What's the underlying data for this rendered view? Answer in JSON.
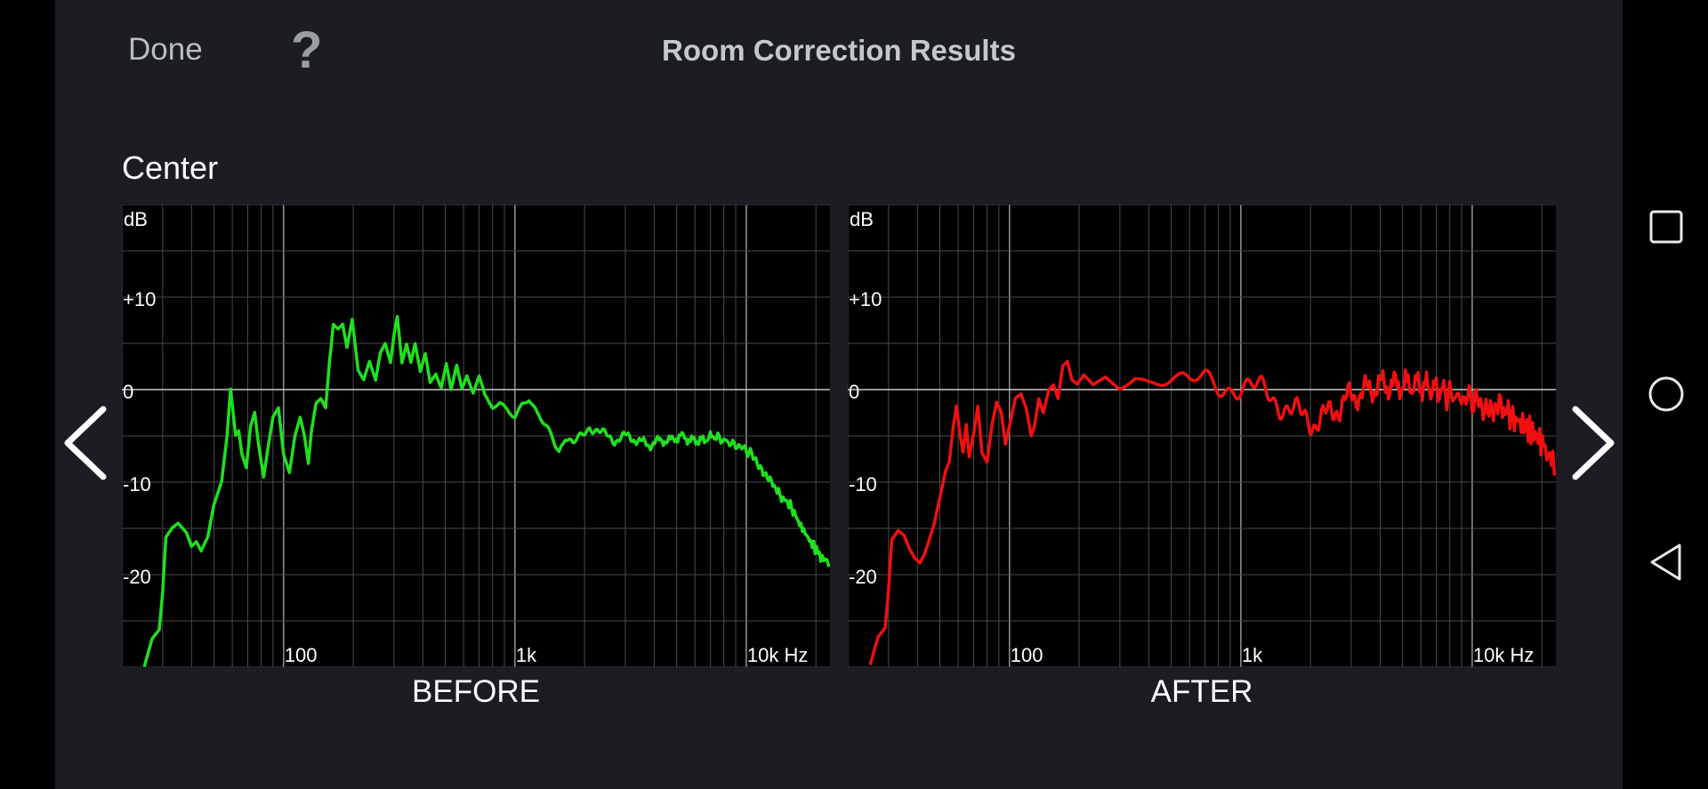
{
  "header": {
    "done_label": "Done",
    "help_label": "?",
    "title": "Room Correction Results"
  },
  "channel": "Center",
  "icons": {
    "prev": "chevron-left-icon",
    "next": "chevron-right-icon",
    "recent": "square-icon",
    "home": "circle-icon",
    "back": "triangle-back-icon"
  },
  "chart_data": [
    {
      "type": "line",
      "caption": "BEFORE",
      "color": "#20e020",
      "y_unit_label": "dB",
      "x_scale": "log",
      "xlim": [
        20,
        23000
      ],
      "ylim": [
        -30,
        20
      ],
      "y_ticks": [
        {
          "value": 10,
          "label": "+10"
        },
        {
          "value": 0,
          "label": "0"
        },
        {
          "value": -10,
          "label": "-10"
        },
        {
          "value": -20,
          "label": "-20"
        }
      ],
      "x_ticks": [
        {
          "value": 100,
          "label": "100"
        },
        {
          "value": 1000,
          "label": "1k"
        },
        {
          "value": 10000,
          "label": "10k Hz"
        }
      ],
      "grid": true,
      "ripple": 0.6,
      "points": [
        [
          25,
          -30
        ],
        [
          27,
          -27
        ],
        [
          29,
          -26
        ],
        [
          30,
          -22
        ],
        [
          31,
          -16
        ],
        [
          33,
          -15
        ],
        [
          35,
          -14.5
        ],
        [
          38,
          -15.5
        ],
        [
          40,
          -17
        ],
        [
          42,
          -16.5
        ],
        [
          44,
          -17.5
        ],
        [
          47,
          -16
        ],
        [
          50,
          -12.5
        ],
        [
          54,
          -10
        ],
        [
          57,
          -5
        ],
        [
          59,
          0
        ],
        [
          62,
          -5
        ],
        [
          64,
          -4.5
        ],
        [
          66,
          -7
        ],
        [
          69,
          -8.5
        ],
        [
          72,
          -4
        ],
        [
          75,
          -2.5
        ],
        [
          78,
          -6
        ],
        [
          82,
          -9.5
        ],
        [
          86,
          -6
        ],
        [
          90,
          -3
        ],
        [
          95,
          -2
        ],
        [
          100,
          -7
        ],
        [
          106,
          -9
        ],
        [
          112,
          -5
        ],
        [
          118,
          -3
        ],
        [
          123,
          -5
        ],
        [
          128,
          -8
        ],
        [
          132,
          -4.5
        ],
        [
          138,
          -1.5
        ],
        [
          145,
          -1
        ],
        [
          152,
          -2
        ],
        [
          158,
          3
        ],
        [
          164,
          7
        ],
        [
          172,
          6.5
        ],
        [
          180,
          7
        ],
        [
          188,
          4.5
        ],
        [
          198,
          7.5
        ],
        [
          210,
          2
        ],
        [
          222,
          1
        ],
        [
          235,
          3
        ],
        [
          250,
          1
        ],
        [
          262,
          4
        ],
        [
          275,
          5
        ],
        [
          290,
          3
        ],
        [
          300,
          6
        ],
        [
          310,
          8
        ],
        [
          325,
          3
        ],
        [
          340,
          5
        ],
        [
          355,
          3
        ],
        [
          370,
          5
        ],
        [
          390,
          2
        ],
        [
          410,
          4
        ],
        [
          430,
          1
        ],
        [
          455,
          2
        ],
        [
          480,
          0.5
        ],
        [
          505,
          3
        ],
        [
          530,
          0
        ],
        [
          560,
          2.5
        ],
        [
          590,
          0
        ],
        [
          620,
          1.5
        ],
        [
          660,
          -0.5
        ],
        [
          700,
          1
        ],
        [
          740,
          -1
        ],
        [
          800,
          -2
        ],
        [
          860,
          -1.5
        ],
        [
          930,
          -2
        ],
        [
          1000,
          -2.5
        ],
        [
          1070,
          -1.5
        ],
        [
          1150,
          -1
        ],
        [
          1250,
          -3
        ],
        [
          1350,
          -4
        ],
        [
          1450,
          -5
        ],
        [
          1550,
          -6.5
        ],
        [
          1650,
          -5
        ],
        [
          1780,
          -6
        ],
        [
          1950,
          -5
        ],
        [
          2100,
          -4
        ],
        [
          2300,
          -4.5
        ],
        [
          2500,
          -5
        ],
        [
          2700,
          -5.5
        ],
        [
          3000,
          -5
        ],
        [
          3400,
          -5.5
        ],
        [
          3800,
          -6
        ],
        [
          4200,
          -5.5
        ],
        [
          4700,
          -5.5
        ],
        [
          5200,
          -5
        ],
        [
          5800,
          -5.5
        ],
        [
          6500,
          -5.5
        ],
        [
          7200,
          -5
        ],
        [
          8000,
          -5.5
        ],
        [
          9000,
          -6
        ],
        [
          10000,
          -6.5
        ],
        [
          11000,
          -7.5
        ],
        [
          12000,
          -9
        ],
        [
          13000,
          -10
        ],
        [
          14000,
          -11.5
        ],
        [
          15500,
          -12.5
        ],
        [
          17000,
          -14.5
        ],
        [
          19000,
          -16.5
        ],
        [
          21000,
          -18
        ],
        [
          23000,
          -19
        ]
      ]
    },
    {
      "type": "line",
      "caption": "AFTER",
      "color": "#f01010",
      "y_unit_label": "dB",
      "x_scale": "log",
      "xlim": [
        20,
        23000
      ],
      "ylim": [
        -30,
        20
      ],
      "y_ticks": [
        {
          "value": 10,
          "label": "+10"
        },
        {
          "value": 0,
          "label": "0"
        },
        {
          "value": -10,
          "label": "-10"
        },
        {
          "value": -20,
          "label": "-20"
        }
      ],
      "x_ticks": [
        {
          "value": 100,
          "label": "100"
        },
        {
          "value": 1000,
          "label": "1k"
        },
        {
          "value": 10000,
          "label": "10k Hz"
        }
      ],
      "grid": true,
      "ripple": 1.8,
      "points": [
        [
          25,
          -30
        ],
        [
          27,
          -27
        ],
        [
          29,
          -26
        ],
        [
          30,
          -22
        ],
        [
          31,
          -16.5
        ],
        [
          33,
          -15.5
        ],
        [
          35,
          -16
        ],
        [
          37,
          -17.5
        ],
        [
          39,
          -18.5
        ],
        [
          41,
          -19
        ],
        [
          43,
          -18
        ],
        [
          45,
          -16.5
        ],
        [
          47,
          -15
        ],
        [
          50,
          -12
        ],
        [
          53,
          -9
        ],
        [
          55,
          -8
        ],
        [
          57,
          -4.5
        ],
        [
          59,
          -2
        ],
        [
          61,
          -5
        ],
        [
          63,
          -7
        ],
        [
          65,
          -4
        ],
        [
          67,
          -7.5
        ],
        [
          70,
          -5
        ],
        [
          73,
          -2
        ],
        [
          76,
          -7
        ],
        [
          80,
          -8
        ],
        [
          84,
          -4
        ],
        [
          88,
          -1.5
        ],
        [
          92,
          -2.5
        ],
        [
          96,
          -6
        ],
        [
          100,
          -4
        ],
        [
          106,
          -1
        ],
        [
          112,
          -0.5
        ],
        [
          118,
          -2
        ],
        [
          124,
          -5
        ],
        [
          128,
          -4
        ],
        [
          134,
          -1
        ],
        [
          140,
          -2.5
        ],
        [
          148,
          0
        ],
        [
          155,
          0.5
        ],
        [
          162,
          -1
        ],
        [
          170,
          2.5
        ],
        [
          178,
          3
        ],
        [
          186,
          1
        ],
        [
          196,
          0.5
        ],
        [
          210,
          1.5
        ],
        [
          230,
          0.5
        ],
        [
          260,
          1.5
        ],
        [
          300,
          0.5
        ],
        [
          350,
          1.5
        ],
        [
          400,
          1
        ],
        [
          500,
          1
        ],
        [
          600,
          0.5
        ],
        [
          700,
          1
        ],
        [
          800,
          0.5
        ],
        [
          900,
          0.5
        ],
        [
          1000,
          0.5
        ],
        [
          1150,
          0
        ],
        [
          1300,
          -0.5
        ],
        [
          1500,
          -1.5
        ],
        [
          1700,
          -2.5
        ],
        [
          1900,
          -3
        ],
        [
          2100,
          -3.5
        ],
        [
          2300,
          -3
        ],
        [
          2600,
          -2
        ],
        [
          2900,
          -1
        ],
        [
          3200,
          -0.5
        ],
        [
          3600,
          0
        ],
        [
          4000,
          0.5
        ],
        [
          5000,
          0.5
        ],
        [
          6000,
          0.5
        ],
        [
          7000,
          0
        ],
        [
          8000,
          -0.5
        ],
        [
          9000,
          -1
        ],
        [
          10000,
          -1
        ],
        [
          11000,
          -1.5
        ],
        [
          12000,
          -1.5
        ],
        [
          13500,
          -2
        ],
        [
          15000,
          -3
        ],
        [
          17000,
          -4
        ],
        [
          19000,
          -5
        ],
        [
          21000,
          -6.5
        ],
        [
          23000,
          -9
        ]
      ]
    }
  ]
}
